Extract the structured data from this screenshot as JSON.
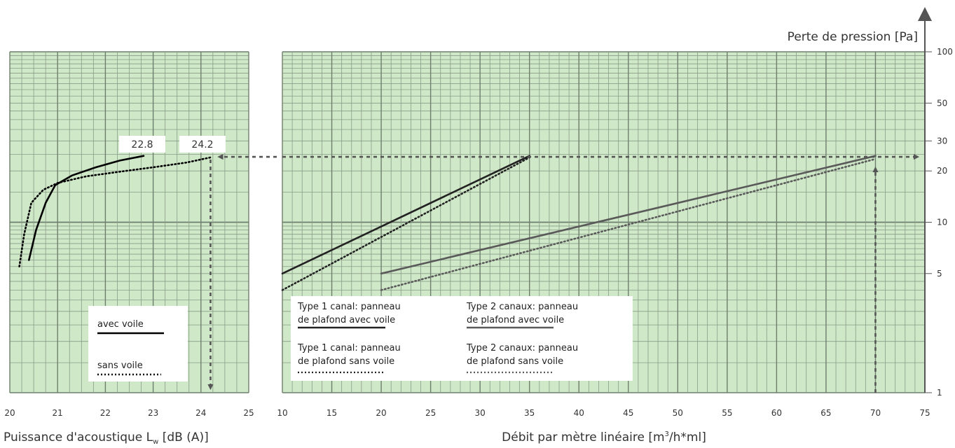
{
  "chart_data": [
    {
      "type": "line",
      "panel": "left",
      "xlabel_prefix": "Puissance d'acoustique L",
      "xlabel_sub": "w",
      "xlabel_suffix": " [dB (A)]",
      "xlim": [
        20,
        25
      ],
      "xticks": [
        "20",
        "21",
        "22",
        "23",
        "24",
        "25"
      ],
      "ylim": [
        1,
        100
      ],
      "yscale": "log",
      "grid": true,
      "series": [
        {
          "name": "avec voile",
          "style": "solid",
          "color": "#000000",
          "x": [
            20.4,
            20.55,
            20.75,
            20.95,
            21.3,
            21.8,
            22.3,
            22.8
          ],
          "y": [
            6.0,
            9.0,
            13.0,
            16.5,
            18.8,
            21.0,
            23.0,
            24.5
          ]
        },
        {
          "name": "sans voile",
          "style": "dotted",
          "color": "#000000",
          "x": [
            20.2,
            20.3,
            20.45,
            20.7,
            21.0,
            21.6,
            22.3,
            23.0,
            23.7,
            24.2
          ],
          "y": [
            5.5,
            8.5,
            13.0,
            15.5,
            17.0,
            18.6,
            19.8,
            21.0,
            22.4,
            24.0
          ]
        }
      ],
      "callouts": [
        "22.8",
        "24.2"
      ],
      "legend": {
        "position": "bottom-left",
        "entries": [
          "avec voile",
          "sans voile"
        ]
      }
    },
    {
      "type": "line",
      "panel": "right",
      "xlabel_prefix": "Débit par mètre linéaire [m",
      "xlabel_sup": "3",
      "xlabel_suffix": "/h*ml]",
      "ylabel": "Perte de pression [Pa]",
      "xlim": [
        10,
        75
      ],
      "xticks": [
        "10",
        "15",
        "20",
        "25",
        "30",
        "35",
        "40",
        "45",
        "50",
        "55",
        "60",
        "65",
        "70",
        "75"
      ],
      "ylim": [
        1,
        100
      ],
      "yscale": "log",
      "yticks": [
        "1",
        "5",
        "10",
        "20",
        "30",
        "50",
        "100"
      ],
      "grid": true,
      "series": [
        {
          "name": "Type 1 canal: panneau de plafond avec voile",
          "style": "solid",
          "color": "#222222",
          "x": [
            10,
            35
          ],
          "y": [
            5.0,
            24.5
          ]
        },
        {
          "name": "Type 1 canal: panneau de plafond sans voile",
          "style": "dotted",
          "color": "#222222",
          "x": [
            10,
            35
          ],
          "y": [
            4.0,
            24.0
          ]
        },
        {
          "name": "Type 2 canaux: panneau de plafond avec voile",
          "style": "solid",
          "color": "#5a5a5a",
          "x": [
            20,
            70
          ],
          "y": [
            5.0,
            24.5
          ]
        },
        {
          "name": "Type 2 canaux: panneau de plafond sans voile",
          "style": "dotted",
          "color": "#5a5a5a",
          "x": [
            20,
            70
          ],
          "y": [
            4.0,
            23.5
          ]
        }
      ],
      "legend": {
        "position": "bottom-left",
        "entries": [
          {
            "line1": "Type 1 canal: panneau",
            "line2": "de plafond avec voile"
          },
          {
            "line1": "Type 2 canaux: panneau",
            "line2": "de plafond avec voile"
          },
          {
            "line1": "Type 1 canal: panneau",
            "line2": "de plafond sans voile"
          },
          {
            "line1": "Type 2 canaux: panneau",
            "line2": "de plafond sans voile"
          }
        ]
      },
      "guide": {
        "x": 70,
        "y": 24.2
      }
    }
  ],
  "colors": {
    "plot_bg": "#cfe8c8",
    "grid_minor": "#8a9c88",
    "grid_major": "#6f7f6d",
    "guide": "#555555"
  }
}
